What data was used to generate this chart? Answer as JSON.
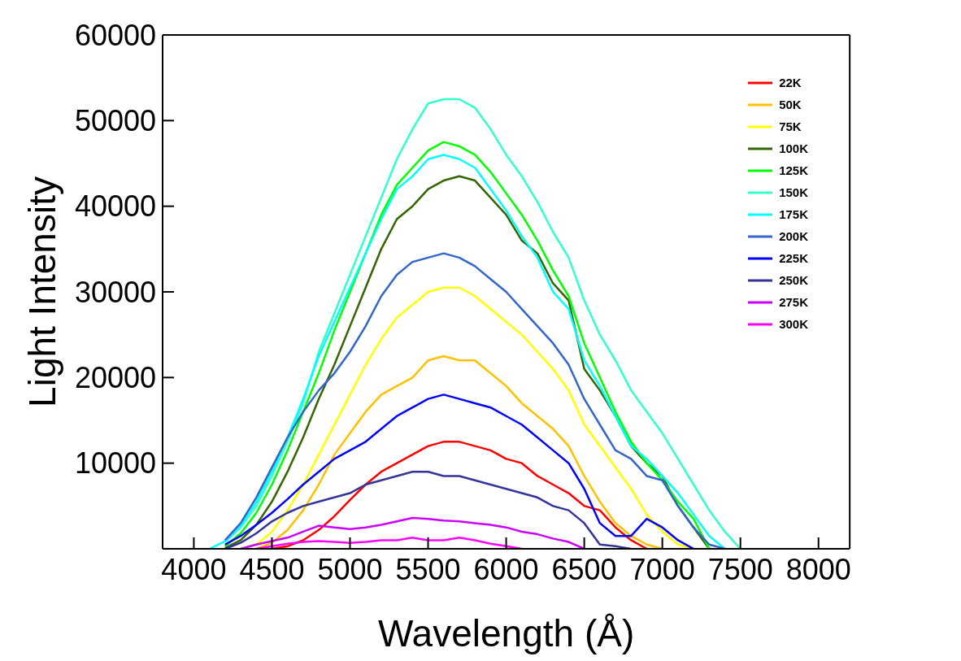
{
  "chart_data": {
    "type": "line",
    "xlabel": "Wavelength (Å)",
    "ylabel": "Light Intensity",
    "x": [
      4100,
      4200,
      4300,
      4400,
      4500,
      4600,
      4700,
      4800,
      4900,
      5000,
      5100,
      5200,
      5300,
      5400,
      5500,
      5600,
      5700,
      5800,
      5900,
      6000,
      6100,
      6200,
      6300,
      6400,
      6500,
      6600,
      6700,
      6800,
      6900,
      7000,
      7100,
      7200,
      7300,
      7400,
      7500
    ],
    "xlim": [
      3800,
      8200
    ],
    "xticks": [
      4000,
      4500,
      5000,
      5500,
      6000,
      6500,
      7000,
      7500,
      8000
    ],
    "ylim": [
      0,
      60000
    ],
    "yticks": [
      10000,
      20000,
      30000,
      40000,
      50000,
      60000
    ],
    "grid": false,
    "legend": "top right",
    "marker": "none",
    "line_style": "solid",
    "series": [
      {
        "name": "22K",
        "color": "#ff0000",
        "values": [
          null,
          null,
          null,
          null,
          0,
          300,
          1000,
          2200,
          3800,
          5700,
          7500,
          9000,
          10000,
          11000,
          12000,
          12500,
          12500,
          12000,
          11500,
          10500,
          10000,
          8500,
          7500,
          6500,
          5000,
          4500,
          2500,
          1000,
          0,
          null,
          null,
          null,
          null,
          null,
          null
        ]
      },
      {
        "name": "50K",
        "color": "#ffc000",
        "values": [
          null,
          null,
          null,
          0,
          700,
          2200,
          4500,
          7500,
          11000,
          13500,
          16000,
          18000,
          19000,
          20000,
          22000,
          22500,
          22000,
          22000,
          20500,
          19000,
          17000,
          15500,
          14000,
          12000,
          8500,
          5500,
          3000,
          1500,
          500,
          0,
          null,
          null,
          null,
          null,
          null
        ]
      },
      {
        "name": "75K",
        "color": "#ffff00",
        "values": [
          null,
          null,
          0,
          500,
          2000,
          4500,
          7500,
          11000,
          14500,
          18000,
          21500,
          24500,
          27000,
          28500,
          30000,
          30500,
          30500,
          29500,
          28000,
          26500,
          25000,
          23000,
          21000,
          18500,
          14500,
          12000,
          9500,
          7000,
          4000,
          2000,
          500,
          0,
          null,
          null,
          null
        ]
      },
      {
        "name": "100K",
        "color": "#336600",
        "values": [
          null,
          100,
          1000,
          2800,
          5500,
          9000,
          13000,
          17500,
          21500,
          26000,
          30500,
          35000,
          38500,
          40000,
          42000,
          43000,
          43500,
          43000,
          41000,
          39000,
          36000,
          34500,
          31000,
          29000,
          21000,
          18500,
          15500,
          12000,
          10000,
          8500,
          5000,
          2500,
          0,
          null,
          null
        ]
      },
      {
        "name": "125K",
        "color": "#00ff00",
        "values": [
          null,
          300,
          1800,
          4200,
          7500,
          11500,
          16000,
          20500,
          25500,
          30000,
          34500,
          39000,
          42500,
          44500,
          46500,
          47500,
          47000,
          46000,
          44000,
          41500,
          39000,
          36000,
          32500,
          29500,
          24000,
          20000,
          16000,
          12500,
          10000,
          8000,
          5500,
          3500,
          0,
          null,
          null
        ]
      },
      {
        "name": "150K",
        "color": "#33ffcc",
        "values": [
          null,
          800,
          2500,
          5000,
          8500,
          12500,
          17000,
          23000,
          27500,
          32000,
          36500,
          41000,
          45500,
          49000,
          52000,
          52500,
          52500,
          51500,
          49000,
          46000,
          43500,
          40500,
          37000,
          34000,
          29000,
          25000,
          22000,
          18500,
          16000,
          13500,
          10500,
          7500,
          4500,
          2000,
          0
        ]
      },
      {
        "name": "175K",
        "color": "#00ffff",
        "values": [
          0,
          900,
          2700,
          5500,
          9000,
          13000,
          17500,
          22500,
          26500,
          30500,
          34500,
          38500,
          42000,
          43500,
          45500,
          46000,
          45500,
          44500,
          42000,
          39500,
          36500,
          34000,
          30000,
          28000,
          22000,
          19000,
          15500,
          12000,
          10500,
          8500,
          6500,
          4000,
          1500,
          0,
          null
        ]
      },
      {
        "name": "200K",
        "color": "#3366cc",
        "values": [
          null,
          1000,
          3000,
          6000,
          9500,
          13000,
          16000,
          18500,
          20500,
          23000,
          26000,
          29500,
          32000,
          33500,
          34000,
          34500,
          34000,
          33000,
          31500,
          30000,
          28000,
          26000,
          24000,
          21500,
          17500,
          14500,
          11500,
          10500,
          8500,
          8000,
          5000,
          2500,
          500,
          0,
          null
        ]
      },
      {
        "name": "225K",
        "color": "#0000ff",
        "values": [
          null,
          500,
          1500,
          2800,
          4200,
          5800,
          7500,
          9000,
          10500,
          11500,
          12500,
          14000,
          15500,
          16500,
          17500,
          18000,
          17500,
          17000,
          16500,
          15500,
          14500,
          13000,
          11500,
          10000,
          7000,
          3000,
          1500,
          1500,
          3500,
          2500,
          1000,
          0,
          null,
          null,
          null
        ]
      },
      {
        "name": "250K",
        "color": "#333399",
        "values": [
          null,
          0,
          700,
          1800,
          3200,
          4200,
          5000,
          5500,
          6000,
          6500,
          7500,
          8000,
          8500,
          9000,
          9000,
          8500,
          8500,
          8000,
          7500,
          7000,
          6500,
          6000,
          5000,
          4500,
          3000,
          500,
          300,
          0,
          null,
          null,
          null,
          null,
          null,
          null,
          null
        ]
      },
      {
        "name": "275K",
        "color": "#cc00ff",
        "values": [
          null,
          null,
          0,
          500,
          900,
          1300,
          2000,
          2700,
          2500,
          2300,
          2500,
          2800,
          3200,
          3600,
          3500,
          3300,
          3200,
          3000,
          2800,
          2500,
          2000,
          1700,
          1200,
          800,
          0,
          null,
          null,
          null,
          null,
          null,
          null,
          null,
          null,
          null,
          null
        ]
      },
      {
        "name": "300K",
        "color": "#ff00ff",
        "values": [
          null,
          null,
          null,
          0,
          300,
          600,
          800,
          900,
          800,
          700,
          800,
          1000,
          1000,
          1300,
          1000,
          1000,
          1300,
          1000,
          600,
          300,
          0,
          null,
          null,
          null,
          null,
          null,
          null,
          null,
          null,
          null,
          null,
          null,
          null,
          null,
          null
        ]
      }
    ]
  }
}
